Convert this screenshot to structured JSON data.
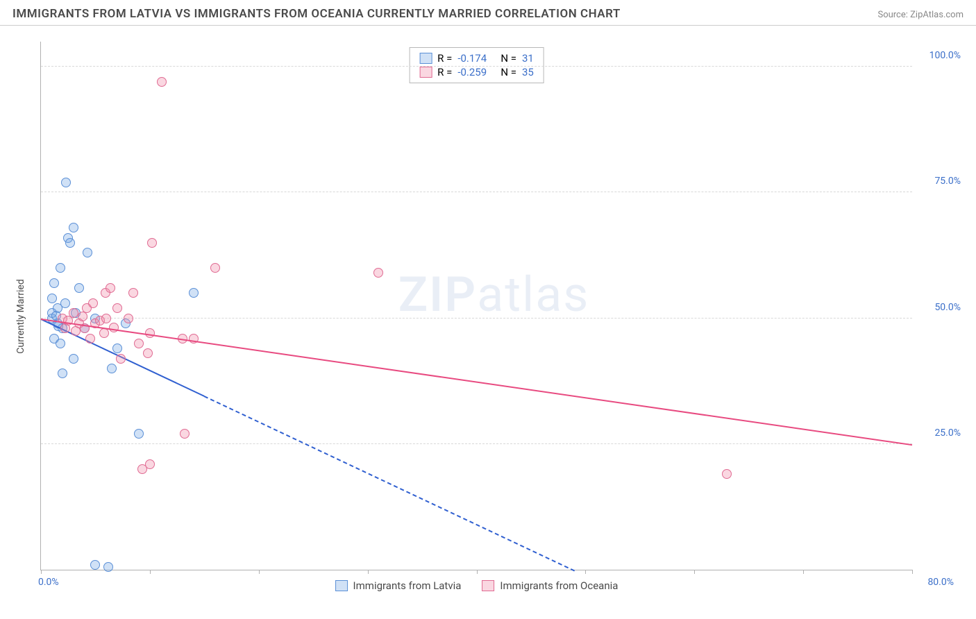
{
  "header": {
    "title": "IMMIGRANTS FROM LATVIA VS IMMIGRANTS FROM OCEANIA CURRENTLY MARRIED CORRELATION CHART",
    "source": "Source: ZipAtlas.com"
  },
  "chart": {
    "type": "scatter",
    "ylabel": "Currently Married",
    "xlim": [
      0,
      80
    ],
    "ylim": [
      0,
      105
    ],
    "x_origin_label": "0.0%",
    "x_max_label": "80.0%",
    "yticks": [
      {
        "v": 25,
        "label": "25.0%"
      },
      {
        "v": 50,
        "label": "50.0%"
      },
      {
        "v": 75,
        "label": "75.0%"
      },
      {
        "v": 100,
        "label": "100.0%"
      }
    ],
    "xtick_positions": [
      0,
      10,
      20,
      30,
      40,
      50,
      60,
      70,
      80
    ],
    "background_color": "#ffffff",
    "grid_color": "#d8d8d8",
    "axis_color": "#b0b0b0",
    "tick_label_color": "#3b6fc9",
    "marker_radius": 7,
    "marker_border_width": 1,
    "watermark": "ZIPatlas",
    "series": [
      {
        "key": "latvia",
        "label": "Immigrants from Latvia",
        "fill": "rgba(120,170,230,0.35)",
        "stroke": "#5a8fd6",
        "line_color": "#2f5fd0",
        "R": "-0.174",
        "N": "31",
        "trend": {
          "x1": 0,
          "y1": 50,
          "x2": 49,
          "y2": 0,
          "solid_until_x": 15
        },
        "points": [
          [
            1,
            50
          ],
          [
            1,
            51
          ],
          [
            1,
            54
          ],
          [
            1.2,
            46
          ],
          [
            1.2,
            57
          ],
          [
            1.5,
            49
          ],
          [
            1.5,
            52
          ],
          [
            1.8,
            45
          ],
          [
            1.8,
            60
          ],
          [
            2,
            39
          ],
          [
            2,
            48
          ],
          [
            2.2,
            53
          ],
          [
            2.3,
            77
          ],
          [
            2.5,
            66
          ],
          [
            2.7,
            65
          ],
          [
            3,
            42
          ],
          [
            3,
            68
          ],
          [
            3.2,
            51
          ],
          [
            3.5,
            56
          ],
          [
            4,
            48
          ],
          [
            4.3,
            63
          ],
          [
            5,
            1
          ],
          [
            5,
            50
          ],
          [
            6.2,
            0.6
          ],
          [
            6.5,
            40
          ],
          [
            7,
            44
          ],
          [
            7.8,
            49
          ],
          [
            9,
            27
          ],
          [
            14,
            55
          ],
          [
            1.4,
            50.5
          ],
          [
            1.6,
            48.5
          ]
        ]
      },
      {
        "key": "oceania",
        "label": "Immigrants from Oceania",
        "fill": "rgba(240,140,170,0.35)",
        "stroke": "#e06a92",
        "line_color": "#e84a80",
        "R": "-0.259",
        "N": "35",
        "trend": {
          "x1": 0,
          "y1": 50,
          "x2": 80,
          "y2": 25,
          "solid_until_x": 80
        },
        "points": [
          [
            2,
            50
          ],
          [
            2.2,
            48
          ],
          [
            2.5,
            49.5
          ],
          [
            3,
            51
          ],
          [
            3.2,
            47.5
          ],
          [
            3.5,
            49
          ],
          [
            3.8,
            50.3
          ],
          [
            4,
            48
          ],
          [
            4.2,
            52
          ],
          [
            4.5,
            46
          ],
          [
            4.8,
            53
          ],
          [
            5,
            49
          ],
          [
            5.4,
            49.5
          ],
          [
            5.8,
            47
          ],
          [
            5.9,
            55
          ],
          [
            6,
            50
          ],
          [
            6.4,
            56
          ],
          [
            6.7,
            48.2
          ],
          [
            7,
            52
          ],
          [
            7.3,
            42
          ],
          [
            8,
            50
          ],
          [
            8.5,
            55
          ],
          [
            9,
            45
          ],
          [
            9.3,
            20
          ],
          [
            9.8,
            43
          ],
          [
            10,
            21
          ],
          [
            10,
            47
          ],
          [
            10.2,
            65
          ],
          [
            11.1,
            97
          ],
          [
            13,
            46
          ],
          [
            13.2,
            27
          ],
          [
            14,
            46
          ],
          [
            16,
            60
          ],
          [
            31,
            59
          ],
          [
            63,
            19
          ]
        ]
      }
    ],
    "stats_legend": {
      "r_label": "R =",
      "n_label": "N =",
      "text_color": "#4a4a4a",
      "value_color": "#3b6fc9"
    }
  }
}
